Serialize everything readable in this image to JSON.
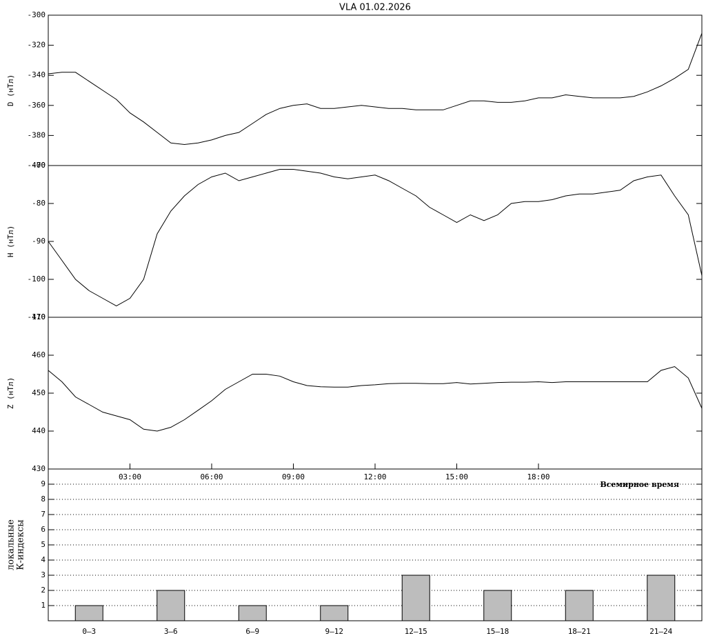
{
  "chart_data": [
    {
      "type": "line",
      "title": "VLA   01.02.2026",
      "ylabel": "D (нТл)",
      "color": "#000000",
      "x": [
        0,
        0.5,
        1,
        1.5,
        2,
        2.5,
        3,
        3.5,
        4,
        4.5,
        5,
        5.5,
        6,
        6.5,
        7,
        7.5,
        8,
        8.5,
        9,
        9.5,
        10,
        10.5,
        11,
        11.5,
        12,
        12.5,
        13,
        13.5,
        14,
        14.5,
        15,
        15.5,
        16,
        16.5,
        17,
        17.5,
        18,
        18.5,
        19,
        19.5,
        20,
        20.5,
        21,
        21.5,
        22,
        22.5,
        23,
        23.5,
        24
      ],
      "values": [
        -339,
        -338,
        -338,
        -344,
        -350,
        -356,
        -365,
        -371,
        -378,
        -385,
        -386,
        -385,
        -383,
        -380,
        -378,
        -372,
        -366,
        -362,
        -360,
        -359,
        -362,
        -362,
        -361,
        -360,
        -361,
        -362,
        -362,
        -363,
        -363,
        -363,
        -360,
        -357,
        -357,
        -358,
        -358,
        -357,
        -355,
        -355,
        -353,
        -354,
        -355,
        -355,
        -355,
        -354,
        -351,
        -347,
        -342,
        -336,
        -312
      ],
      "xlim": [
        0,
        24
      ],
      "ylim": [
        -400,
        -300
      ],
      "yticks": [
        -400,
        -380,
        -360,
        -340,
        -320,
        -300
      ]
    },
    {
      "type": "line",
      "ylabel": "H (нТл)",
      "color": "#000000",
      "x": [
        0,
        0.5,
        1,
        1.5,
        2,
        2.5,
        3,
        3.5,
        4,
        4.5,
        5,
        5.5,
        6,
        6.5,
        7,
        7.5,
        8,
        8.5,
        9,
        9.5,
        10,
        10.5,
        11,
        11.5,
        12,
        12.5,
        13,
        13.5,
        14,
        14.5,
        15,
        15.5,
        16,
        16.5,
        17,
        17.5,
        18,
        18.5,
        19,
        19.5,
        20,
        20.5,
        21,
        21.5,
        22,
        22.5,
        23,
        23.5,
        24
      ],
      "values": [
        -90,
        -95,
        -100,
        -103,
        -105,
        -107,
        -105,
        -100,
        -88,
        -82,
        -78,
        -75,
        -73,
        -72,
        -74,
        -73,
        -72,
        -71,
        -71,
        -71.5,
        -72,
        -73,
        -73.5,
        -73,
        -72.5,
        -74,
        -76,
        -78,
        -81,
        -83,
        -85,
        -83,
        -84.5,
        -83,
        -80,
        -79.5,
        -79.5,
        -79,
        -78,
        -77.5,
        -77.5,
        -77,
        -76.5,
        -74,
        -73,
        -72.5,
        -78,
        -83,
        -99
      ],
      "xlim": [
        0,
        24
      ],
      "ylim": [
        -110,
        -70
      ],
      "yticks": [
        -110,
        -100,
        -90,
        -80,
        -70
      ]
    },
    {
      "type": "line",
      "ylabel": "Z (нТл)",
      "color": "#000000",
      "x": [
        0,
        0.5,
        1,
        1.5,
        2,
        2.5,
        3,
        3.5,
        4,
        4.5,
        5,
        5.5,
        6,
        6.5,
        7,
        7.5,
        8,
        8.5,
        9,
        9.5,
        10,
        10.5,
        11,
        11.5,
        12,
        12.5,
        13,
        13.5,
        14,
        14.5,
        15,
        15.5,
        16,
        16.5,
        17,
        17.5,
        18,
        18.5,
        19,
        19.5,
        20,
        20.5,
        21,
        21.5,
        22,
        22.5,
        23,
        23.5,
        24
      ],
      "values": [
        456,
        453,
        449,
        447,
        445,
        444,
        443,
        440.5,
        440,
        441,
        443,
        445.5,
        448,
        451,
        453,
        455,
        455,
        454.5,
        453,
        452,
        451.7,
        451.6,
        451.6,
        452,
        452.2,
        452.5,
        452.6,
        452.6,
        452.5,
        452.5,
        452.8,
        452.4,
        452.6,
        452.8,
        452.9,
        452.9,
        453,
        452.8,
        453,
        453,
        453,
        453,
        453,
        453,
        453,
        456,
        457,
        454,
        446
      ],
      "xlim": [
        0,
        24
      ],
      "ylim": [
        430,
        470
      ],
      "yticks": [
        430,
        440,
        450,
        460,
        470
      ],
      "xticks": [
        {
          "value": 3,
          "label": "03:00"
        },
        {
          "value": 6,
          "label": "06:00"
        },
        {
          "value": 9,
          "label": "09:00"
        },
        {
          "value": 12,
          "label": "12:00"
        },
        {
          "value": 15,
          "label": "15:00"
        },
        {
          "value": 18,
          "label": "18:00"
        }
      ],
      "xlabel": "Всемирное время"
    },
    {
      "type": "bar",
      "ylabel": [
        "локальные",
        "К-индексы"
      ],
      "color": "#bdbdbd",
      "categories": [
        "0–3",
        "3–6",
        "6–9",
        "9–12",
        "12–15",
        "15–18",
        "18–21",
        "21–24"
      ],
      "values": [
        1,
        2,
        1,
        1,
        3,
        2,
        2,
        3
      ],
      "ylim": [
        0,
        10
      ],
      "yticks": [
        1,
        2,
        3,
        4,
        5,
        6,
        7,
        8,
        9
      ],
      "grid": true
    }
  ]
}
